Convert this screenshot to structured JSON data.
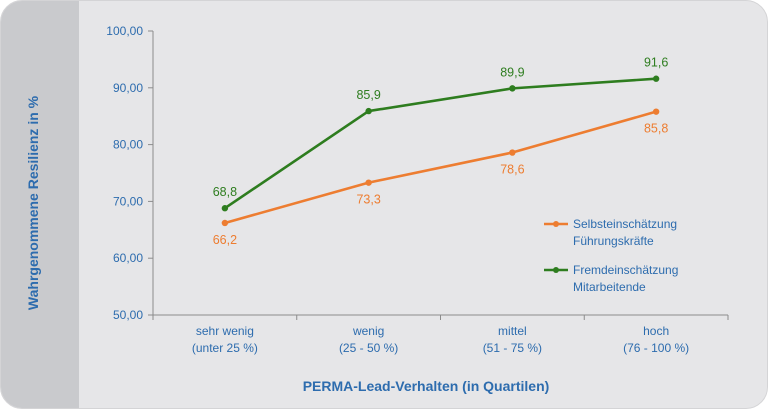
{
  "chart_data": {
    "type": "line",
    "xlabel": "PERMA-Lead-Verhalten (in Quartilen)",
    "ylabel": "Wahrgenommene Resilienz in %",
    "categories": [
      [
        "sehr wenig",
        "(unter 25 %)"
      ],
      [
        "wenig",
        "(25 - 50 %)"
      ],
      [
        "mittel",
        "(51 - 75 %)"
      ],
      [
        "hoch",
        "(76 - 100 %)"
      ]
    ],
    "ylim": [
      50,
      100
    ],
    "yticks": [
      "50,00",
      "60,00",
      "70,00",
      "80,00",
      "90,00",
      "100,00"
    ],
    "series": [
      {
        "name": [
          "Selbsteinschätzung",
          "Führungskräfte"
        ],
        "color": "#ed7d31",
        "values": [
          66.2,
          73.3,
          78.6,
          85.8
        ],
        "labels": [
          "66,2",
          "73,3",
          "78,6",
          "85,8"
        ],
        "label_position": "below"
      },
      {
        "name": [
          "Fremdeinschätzung",
          "Mitarbeitende"
        ],
        "color": "#2e7d1f",
        "values": [
          68.8,
          85.9,
          89.9,
          91.6
        ],
        "labels": [
          "68,8",
          "85,9",
          "89,9",
          "91,6"
        ],
        "label_position": "above"
      }
    ],
    "legend_position": "right",
    "grid": false
  }
}
